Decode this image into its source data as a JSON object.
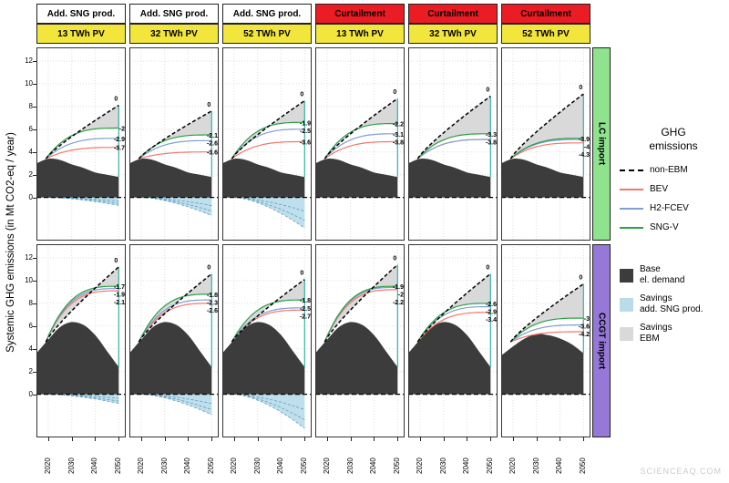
{
  "watermark": "SCIENCEAQ.COM",
  "colors": {
    "base": "#3C3C3C",
    "sng": "#B9DCEA",
    "ebm": "#D9D9D9",
    "teal": "#2FB3A8",
    "sngv": "#2D9F47",
    "h2": "#7F9FD0",
    "bev": "#F4776B",
    "pv_strip": "#F2E63C",
    "grid": "#DEDEDE"
  },
  "y_axis": {
    "title": "Systemic GHG emissions (in Mt CO2-eq / year)",
    "ticks": [
      0,
      2,
      4,
      6,
      8,
      10,
      12
    ],
    "range": [
      -3.8,
      13.2
    ]
  },
  "x_axis": {
    "ticks": [
      2020,
      2030,
      2040,
      2050
    ],
    "range": [
      2015,
      2053
    ]
  },
  "legend": {
    "title": "GHG\nemissions",
    "series": [
      {
        "name": "non-EBM",
        "color": "#000000",
        "dash": true
      },
      {
        "name": "BEV",
        "color": "#F4776B",
        "dash": false
      },
      {
        "name": "H2-FCEV",
        "color": "#7F9FD0",
        "dash": false
      },
      {
        "name": "SNG-V",
        "color": "#2D9F47",
        "dash": false
      }
    ],
    "fills": [
      {
        "name": "Base\nel. demand",
        "color": "#3C3C3C"
      },
      {
        "name": "Savings\nadd. SNG prod.",
        "color": "#B9DCEA"
      },
      {
        "name": "Savings\nEBM",
        "color": "#D9D9D9"
      }
    ]
  },
  "chart_data": {
    "type": "area",
    "subtype": "faceted 2x6 stacked area + line chart with end-point annotations",
    "unit": "Mt CO2-eq / year",
    "facets": {
      "columns": [
        {
          "scenario": "Add. SNG prod.",
          "scenario_bg": "#FFFFFF",
          "pv": "13 TWh PV"
        },
        {
          "scenario": "Add. SNG prod.",
          "scenario_bg": "#FFFFFF",
          "pv": "32 TWh PV"
        },
        {
          "scenario": "Add. SNG prod.",
          "scenario_bg": "#FFFFFF",
          "pv": "52 TWh PV"
        },
        {
          "scenario": "Curtailment",
          "scenario_bg": "#EC1C24",
          "pv": "13 TWh PV"
        },
        {
          "scenario": "Curtailment",
          "scenario_bg": "#EC1C24",
          "pv": "32 TWh PV"
        },
        {
          "scenario": "Curtailment",
          "scenario_bg": "#EC1C24",
          "pv": "52 TWh PV"
        }
      ],
      "rows": [
        {
          "label": "LC import",
          "color": "#8FE38F"
        },
        {
          "label": "CCGT import",
          "color": "#9678D8"
        }
      ]
    },
    "base_x": [
      2015,
      2020,
      2025,
      2030,
      2035,
      2040,
      2045,
      2050
    ],
    "bases": {
      "LC": [
        3.0,
        3.4,
        3.3,
        2.9,
        2.6,
        2.2,
        2.0,
        1.8
      ],
      "CCGT": [
        3.6,
        4.8,
        5.9,
        6.35,
        6.1,
        5.2,
        3.8,
        2.4
      ],
      "CCGT_C52": [
        3.4,
        4.2,
        4.9,
        5.3,
        5.2,
        4.9,
        4.4,
        3.6
      ]
    },
    "line_start_year": 2019,
    "line_end_year": 2050,
    "series_order": [
      "SNG-V",
      "H2-FCEV",
      "BEV"
    ],
    "panels": [
      {
        "row": "LC import",
        "col": "Add. SNG prod. / 13 TWh PV",
        "start": 3.4,
        "non_ebm_end": 8.1,
        "ends": [
          6.1,
          5.2,
          4.4
        ],
        "labels": [
          "0",
          "-2",
          "-2.9",
          "-3.7"
        ],
        "sng_min": -0.7,
        "base": "LC"
      },
      {
        "row": "LC import",
        "col": "Add. SNG prod. / 32 TWh PV",
        "start": 3.4,
        "non_ebm_end": 7.6,
        "ends": [
          5.5,
          5.0,
          4.0
        ],
        "labels": [
          "0",
          "-2.1",
          "-2.6",
          "-3.6"
        ],
        "sng_min": -1.6,
        "base": "LC"
      },
      {
        "row": "LC import",
        "col": "Add. SNG prod. / 52 TWh PV",
        "start": 3.4,
        "non_ebm_end": 8.5,
        "ends": [
          6.6,
          6.0,
          4.9
        ],
        "labels": [
          "0",
          "-1.9",
          "-2.5",
          "-3.6"
        ],
        "sng_min": -2.7,
        "base": "LC"
      },
      {
        "row": "LC import",
        "col": "Curtailment / 13 TWh PV",
        "start": 3.4,
        "non_ebm_end": 8.7,
        "ends": [
          6.5,
          5.6,
          4.9
        ],
        "labels": [
          "0",
          "-2.2",
          "-3.1",
          "-3.8"
        ],
        "sng_min": 0,
        "base": "LC"
      },
      {
        "row": "LC import",
        "col": "Curtailment / 32 TWh PV",
        "start": 3.4,
        "non_ebm_end": 8.9,
        "ends": [
          5.6,
          5.1,
          5.1
        ],
        "labels": [
          "0",
          "-3.3",
          "-3.8"
        ],
        "sng_min": 0,
        "base": "LC"
      },
      {
        "row": "LC import",
        "col": "Curtailment / 52 TWh PV",
        "start": 3.4,
        "non_ebm_end": 9.1,
        "ends": [
          5.2,
          5.1,
          4.8
        ],
        "labels": [
          "0",
          "-3.9",
          "-4",
          "-4.3"
        ],
        "sng_min": 0,
        "base": "LC"
      },
      {
        "row": "CCGT import",
        "col": "Add. SNG prod. / 13 TWh PV",
        "start": 4.6,
        "non_ebm_end": 11.2,
        "ends": [
          9.5,
          9.3,
          9.1
        ],
        "labels": [
          "0",
          "-1.7",
          "-1.9",
          "-2.1"
        ],
        "sng_min": -0.8,
        "base": "CCGT"
      },
      {
        "row": "CCGT import",
        "col": "Add. SNG prod. / 32 TWh PV",
        "start": 4.6,
        "non_ebm_end": 10.6,
        "ends": [
          8.8,
          8.3,
          8.0
        ],
        "labels": [
          "0",
          "-1.8",
          "-2.3",
          "-2.6"
        ],
        "sng_min": -1.8,
        "base": "CCGT"
      },
      {
        "row": "CCGT import",
        "col": "Add. SNG prod. / 52 TWh PV",
        "start": 4.6,
        "non_ebm_end": 10.1,
        "ends": [
          8.3,
          7.6,
          7.4
        ],
        "labels": [
          "0",
          "-1.8",
          "-2.5",
          "-2.7"
        ],
        "sng_min": -3.0,
        "base": "CCGT"
      },
      {
        "row": "CCGT import",
        "col": "Curtailment / 13 TWh PV",
        "start": 4.6,
        "non_ebm_end": 11.4,
        "ends": [
          9.5,
          9.4,
          9.2
        ],
        "labels": [
          "0",
          "-1.9",
          "-2",
          "-2.2"
        ],
        "sng_min": 0,
        "base": "CCGT"
      },
      {
        "row": "CCGT import",
        "col": "Curtailment / 32 TWh PV",
        "start": 4.6,
        "non_ebm_end": 10.6,
        "ends": [
          8.0,
          7.7,
          7.2
        ],
        "labels": [
          "0",
          "-2.6",
          "-2.9",
          "-3.4"
        ],
        "sng_min": 0,
        "base": "CCGT"
      },
      {
        "row": "CCGT import",
        "col": "Curtailment / 52 TWh PV",
        "start": 4.6,
        "non_ebm_end": 9.7,
        "ends": [
          6.7,
          6.1,
          5.5
        ],
        "labels": [
          "0",
          "-3",
          "-3.6",
          "-4.2"
        ],
        "sng_min": 0,
        "base": "CCGT_C52"
      }
    ],
    "notes": "ends = 2050 values for [SNG-V, H2-FCEV, BEV]; labels = 2050 difference vs non-EBM (0)"
  }
}
